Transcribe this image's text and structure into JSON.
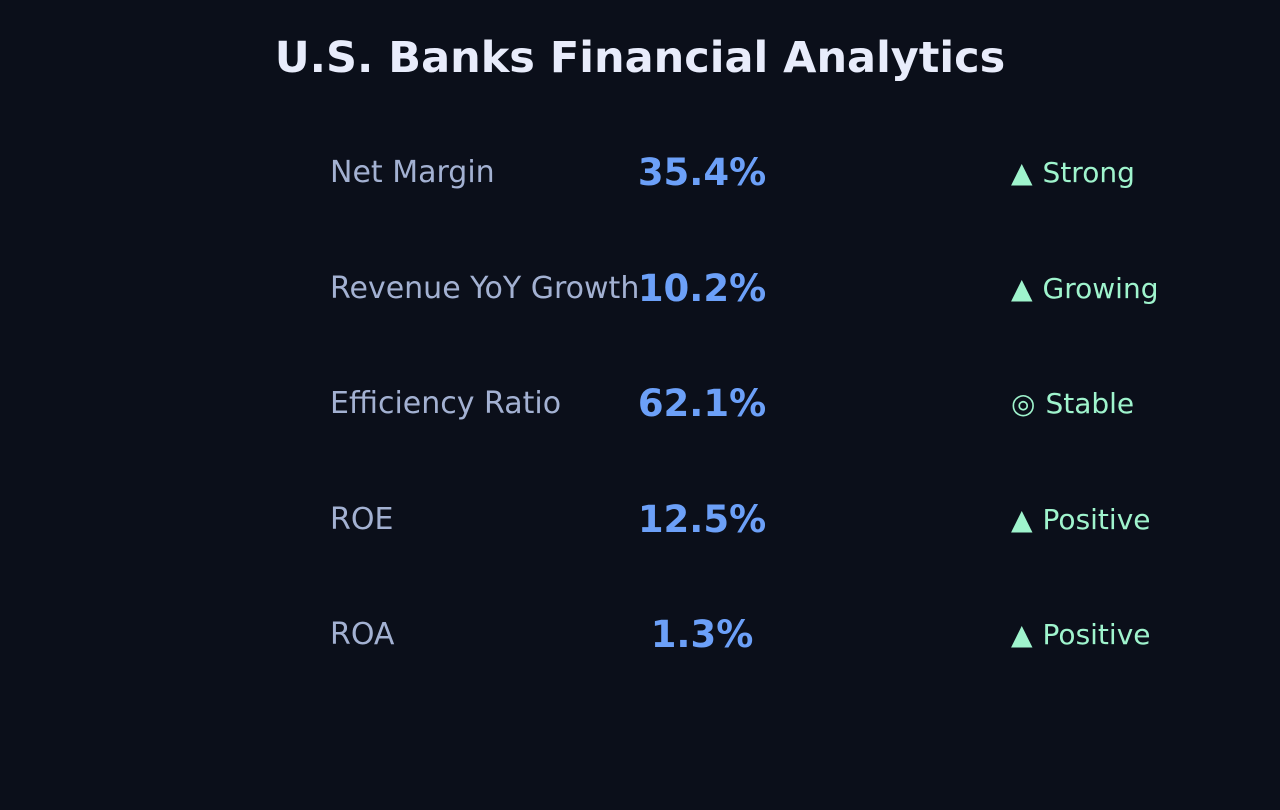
{
  "page": {
    "title": "U.S. Banks Financial Analytics"
  },
  "metrics": [
    {
      "label": "Net Margin",
      "value": "35.4%",
      "status_icon": "▲",
      "status_icon_name": "up-triangle-icon",
      "status": "Strong"
    },
    {
      "label": "Revenue YoY Growth",
      "value": "10.2%",
      "status_icon": "▲",
      "status_icon_name": "up-triangle-icon",
      "status": "Growing"
    },
    {
      "label": "Efficiency Ratio",
      "value": "62.1%",
      "status_icon": "◎",
      "status_icon_name": "bullseye-icon",
      "status": "Stable"
    },
    {
      "label": "ROE",
      "value": "12.5%",
      "status_icon": "▲",
      "status_icon_name": "up-triangle-icon",
      "status": "Positive"
    },
    {
      "label": "ROA",
      "value": "1.3%",
      "status_icon": "▲",
      "status_icon_name": "up-triangle-icon",
      "status": "Positive"
    }
  ],
  "colors": {
    "background": "#0b0f1a",
    "title": "#e8ecfb",
    "label": "#a3b1d2",
    "value": "#6ca0f8",
    "status": "#9ff4cd"
  }
}
